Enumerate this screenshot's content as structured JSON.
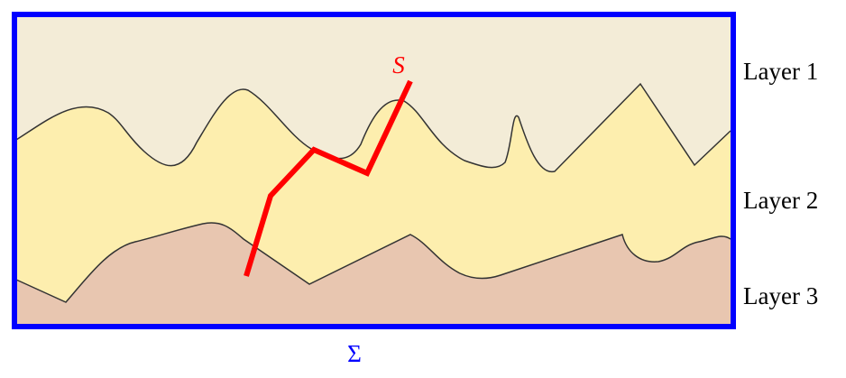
{
  "diagram": {
    "curve_label": "S",
    "layers": [
      "Layer 1",
      "Layer 2",
      "Layer 3"
    ],
    "domain_label": "Σ"
  }
}
